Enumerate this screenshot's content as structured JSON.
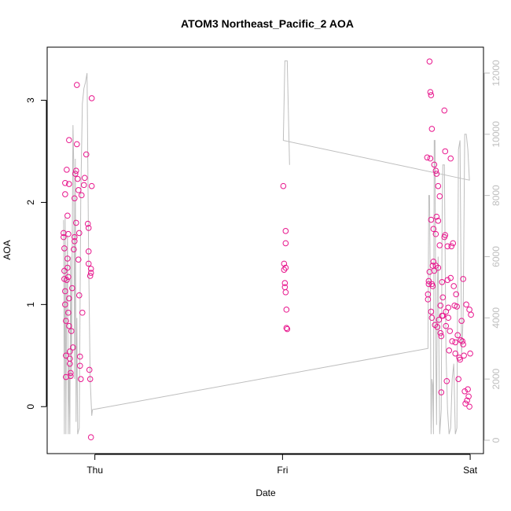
{
  "chart_data": {
    "type": "scatter",
    "title": "ATOM3 Northeast_Pacific_2 AOA",
    "xlabel": "Date",
    "ylabel": "AOA",
    "xlim": [
      -6.1,
      49.7
    ],
    "xticks": [
      {
        "value": 0,
        "label": "Thu"
      },
      {
        "value": 24,
        "label": "Fri"
      },
      {
        "value": 48,
        "label": "Sat"
      }
    ],
    "ylim": [
      -0.46,
      3.52
    ],
    "yticks": [
      0,
      1,
      2,
      3
    ],
    "y2lim": [
      -437,
      12847
    ],
    "y2ticks": [
      0,
      2000,
      4000,
      6000,
      8000,
      10000,
      12000
    ],
    "series": [
      {
        "type": "scatter",
        "color": "#e8168d",
        "x": [
          -4.0,
          -4.0,
          -3.9,
          -3.9,
          -3.9,
          -3.8,
          -3.8,
          -3.8,
          -3.8,
          -3.7,
          -3.7,
          -3.7,
          -3.6,
          -3.6,
          -3.5,
          -3.5,
          -3.5,
          -3.4,
          -3.4,
          -3.4,
          -3.3,
          -3.3,
          -3.3,
          -3.3,
          -3.2,
          -3.2,
          -3.2,
          -3.1,
          -3.1,
          -3.0,
          -2.9,
          -2.8,
          -2.7,
          -2.6,
          -2.6,
          -2.6,
          -2.5,
          -2.4,
          -2.4,
          -2.3,
          -2.3,
          -2.2,
          -2.1,
          -2.1,
          -2.0,
          -2.0,
          -1.9,
          -1.9,
          -1.8,
          -1.7,
          -1.6,
          -1.4,
          -1.3,
          -1.1,
          -0.9,
          -0.8,
          -0.8,
          -0.8,
          -0.7,
          -0.6,
          -0.6,
          -0.5,
          -0.5,
          -0.5,
          -0.4,
          -0.4,
          24.1,
          24.2,
          24.2,
          24.3,
          24.3,
          24.4,
          24.4,
          24.4,
          24.4,
          24.5,
          24.5,
          24.6,
          42.5,
          42.6,
          42.6,
          42.7,
          42.7,
          42.8,
          42.8,
          42.9,
          42.9,
          43.0,
          43.0,
          43.0,
          43.1,
          43.1,
          43.1,
          43.2,
          43.2,
          43.3,
          43.3,
          43.4,
          43.4,
          43.5,
          43.6,
          43.6,
          43.6,
          43.7,
          43.7,
          43.8,
          43.9,
          43.9,
          43.9,
          44.0,
          44.1,
          44.1,
          44.2,
          44.2,
          44.3,
          44.3,
          44.4,
          44.4,
          44.5,
          44.5,
          44.7,
          44.7,
          44.8,
          44.8,
          44.9,
          44.9,
          45.0,
          45.1,
          45.1,
          45.2,
          45.2,
          45.3,
          45.4,
          45.5,
          45.5,
          45.6,
          45.7,
          45.8,
          45.9,
          46.0,
          46.1,
          46.1,
          46.2,
          46.3,
          46.4,
          46.5,
          46.6,
          46.7,
          46.8,
          46.9,
          47.0,
          47.1,
          47.1,
          47.2,
          47.3,
          47.4,
          47.5,
          47.6,
          47.7,
          47.8,
          47.9,
          47.9,
          48.0,
          48.1
        ],
        "values": [
          1.7,
          1.66,
          1.55,
          1.33,
          1.25,
          2.19,
          2.08,
          1.13,
          1.0,
          0.84,
          0.5,
          0.29,
          2.32,
          1.24,
          1.87,
          1.45,
          1.36,
          1.69,
          1.27,
          0.92,
          2.61,
          2.18,
          1.06,
          0.79,
          0.54,
          0.47,
          0.42,
          0.33,
          0.3,
          0.74,
          1.16,
          0.58,
          1.54,
          1.66,
          1.62,
          2.04,
          2.28,
          2.31,
          1.8,
          3.15,
          2.57,
          2.23,
          2.12,
          1.44,
          1.7,
          1.09,
          0.49,
          0.4,
          0.27,
          2.07,
          0.92,
          2.17,
          2.24,
          2.47,
          1.79,
          1.75,
          1.52,
          1.4,
          0.36,
          1.28,
          0.27,
          1.31,
          -0.3,
          1.35,
          3.02,
          2.16,
          2.16,
          1.4,
          1.34,
          1.21,
          1.17,
          1.72,
          1.6,
          1.36,
          1.12,
          0.95,
          0.77,
          0.76,
          2.44,
          1.1,
          1.05,
          1.2,
          1.23,
          3.38,
          1.32,
          3.08,
          2.43,
          3.05,
          1.83,
          0.93,
          2.72,
          1.2,
          0.87,
          1.38,
          1.18,
          1.42,
          1.74,
          2.37,
          1.33,
          0.8,
          2.31,
          1.69,
          1.38,
          2.28,
          1.86,
          0.78,
          2.16,
          1.82,
          1.36,
          0.85,
          2.06,
          1.58,
          0.99,
          0.72,
          0.69,
          0.14,
          1.22,
          0.89,
          1.07,
          0.89,
          2.9,
          1.66,
          2.5,
          1.68,
          0.93,
          0.79,
          0.25,
          1.57,
          1.24,
          0.97,
          0.87,
          0.55,
          0.74,
          2.43,
          1.26,
          1.57,
          0.64,
          1.6,
          1.18,
          0.99,
          0.63,
          0.52,
          1.1,
          0.98,
          0.7,
          0.27,
          0.48,
          0.46,
          0.65,
          0.84,
          0.64,
          1.25,
          0.61,
          0.5,
          0.15,
          0.03,
          1.0,
          0.06,
          0.17,
          0.1,
          0.0,
          0.95,
          0.52,
          0.9
        ]
      },
      {
        "type": "line",
        "axis": "y2",
        "color": "#bebebe",
        "x": [
          -4.0,
          -3.9,
          -3.8,
          -3.7,
          -3.6,
          -3.5,
          -3.4,
          -3.3,
          -3.2,
          -3.1,
          -3.0,
          -2.8,
          -2.7,
          -2.6,
          -2.5,
          -2.4,
          -2.3,
          -2.2,
          -2.0,
          -1.8,
          -1.6,
          -1.4,
          -1.2,
          -1.0,
          -0.8,
          -0.6,
          -0.4,
          -0.3,
          42.6,
          42.7,
          42.8,
          42.9,
          43.0,
          43.1,
          43.2,
          43.3,
          43.4,
          43.5,
          43.6,
          43.7,
          43.8,
          43.9,
          44.0,
          44.1,
          44.3,
          44.4,
          44.5,
          44.7,
          44.9,
          45.1,
          45.3,
          45.5,
          45.7,
          45.9,
          46.1,
          46.3,
          46.5,
          46.7,
          46.9,
          47.1,
          47.3,
          47.5,
          47.7,
          47.9,
          24.1,
          24.3,
          24.6,
          24.9
        ],
        "values": [
          7200,
          200,
          7300,
          200,
          5000,
          6700,
          200,
          2500,
          200,
          6000,
          2000,
          10300,
          9000,
          2000,
          9200,
          600,
          4000,
          200,
          400,
          8000,
          11000,
          11500,
          11700,
          12000,
          6000,
          2000,
          800,
          1000,
          3000,
          8000,
          8000,
          5000,
          200,
          2000,
          1800,
          200,
          9800,
          9800,
          3000,
          500,
          5000,
          6000,
          3000,
          200,
          1000,
          7000,
          9000,
          9000,
          3000,
          1000,
          200,
          400,
          2000,
          2500,
          200,
          400,
          9500,
          9800,
          2800,
          4000,
          10000,
          10000,
          9500,
          8500,
          9800,
          12400,
          12400,
          9000
        ]
      }
    ]
  }
}
